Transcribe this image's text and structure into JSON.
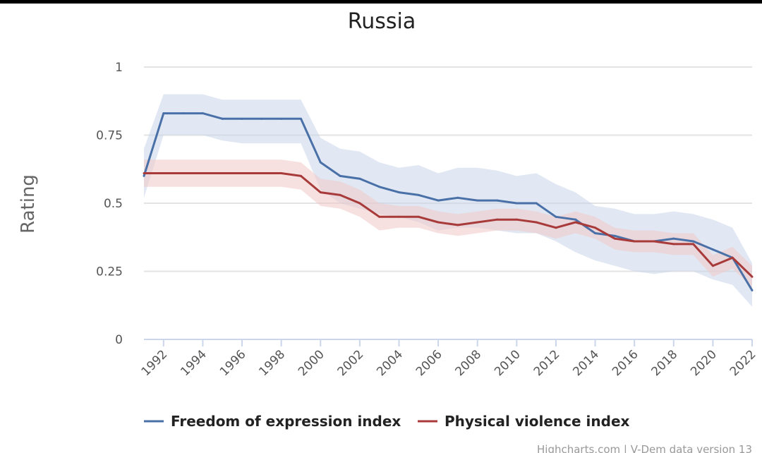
{
  "chart_data": {
    "type": "line",
    "title": "Russia",
    "ylabel": "Rating",
    "xlabel": "",
    "ylim": [
      0,
      1
    ],
    "y_ticks": [
      {
        "value": 0,
        "label": "0"
      },
      {
        "value": 0.25,
        "label": "0.25"
      },
      {
        "value": 0.5,
        "label": "0.5"
      },
      {
        "value": 0.75,
        "label": "0.75"
      },
      {
        "value": 1,
        "label": "1"
      }
    ],
    "xlim": [
      1991,
      2022
    ],
    "x_ticks": [
      1992,
      1994,
      1996,
      1998,
      2000,
      2002,
      2004,
      2006,
      2008,
      2010,
      2012,
      2014,
      2016,
      2018,
      2020,
      2022
    ],
    "x": [
      1991,
      1992,
      1993,
      1994,
      1995,
      1996,
      1997,
      1998,
      1999,
      2000,
      2001,
      2002,
      2003,
      2004,
      2005,
      2006,
      2007,
      2008,
      2009,
      2010,
      2011,
      2012,
      2013,
      2014,
      2015,
      2016,
      2017,
      2018,
      2019,
      2020,
      2021,
      2022
    ],
    "series": [
      {
        "name": "Freedom of expression index",
        "color": "#4a70a8",
        "band_color": "#c9d6ea",
        "values": [
          0.6,
          0.83,
          0.83,
          0.83,
          0.81,
          0.81,
          0.81,
          0.81,
          0.81,
          0.65,
          0.6,
          0.59,
          0.56,
          0.54,
          0.53,
          0.51,
          0.52,
          0.51,
          0.51,
          0.5,
          0.5,
          0.45,
          0.44,
          0.39,
          0.38,
          0.36,
          0.36,
          0.37,
          0.36,
          0.33,
          0.3,
          0.18
        ],
        "upper": [
          0.7,
          0.9,
          0.9,
          0.9,
          0.88,
          0.88,
          0.88,
          0.88,
          0.88,
          0.74,
          0.7,
          0.69,
          0.65,
          0.63,
          0.64,
          0.61,
          0.63,
          0.63,
          0.62,
          0.6,
          0.61,
          0.57,
          0.54,
          0.49,
          0.48,
          0.46,
          0.46,
          0.47,
          0.46,
          0.44,
          0.41,
          0.28
        ],
        "lower": [
          0.52,
          0.75,
          0.75,
          0.75,
          0.73,
          0.72,
          0.72,
          0.72,
          0.72,
          0.55,
          0.5,
          0.48,
          0.46,
          0.45,
          0.43,
          0.4,
          0.41,
          0.41,
          0.4,
          0.39,
          0.39,
          0.36,
          0.32,
          0.29,
          0.27,
          0.25,
          0.24,
          0.25,
          0.25,
          0.22,
          0.2,
          0.12
        ]
      },
      {
        "name": "Physical violence index",
        "color": "#a83a3a",
        "band_color": "#f0c9c7",
        "values": [
          0.61,
          0.61,
          0.61,
          0.61,
          0.61,
          0.61,
          0.61,
          0.61,
          0.6,
          0.54,
          0.53,
          0.5,
          0.45,
          0.45,
          0.45,
          0.43,
          0.42,
          0.43,
          0.44,
          0.44,
          0.43,
          0.41,
          0.43,
          0.41,
          0.37,
          0.36,
          0.36,
          0.35,
          0.35,
          0.27,
          0.3,
          0.23
        ],
        "upper": [
          0.66,
          0.66,
          0.66,
          0.66,
          0.66,
          0.66,
          0.66,
          0.66,
          0.65,
          0.59,
          0.58,
          0.55,
          0.5,
          0.49,
          0.49,
          0.47,
          0.46,
          0.47,
          0.48,
          0.48,
          0.47,
          0.45,
          0.47,
          0.45,
          0.41,
          0.4,
          0.4,
          0.39,
          0.39,
          0.31,
          0.34,
          0.27
        ],
        "lower": [
          0.56,
          0.56,
          0.56,
          0.56,
          0.56,
          0.56,
          0.56,
          0.56,
          0.55,
          0.49,
          0.48,
          0.45,
          0.4,
          0.41,
          0.41,
          0.39,
          0.38,
          0.39,
          0.4,
          0.4,
          0.39,
          0.37,
          0.39,
          0.37,
          0.33,
          0.32,
          0.32,
          0.31,
          0.31,
          0.23,
          0.26,
          0.19
        ]
      }
    ],
    "grid": true,
    "legend_placement": "bottom-center",
    "credits": "Highcharts.com | V-Dem data version 13"
  }
}
